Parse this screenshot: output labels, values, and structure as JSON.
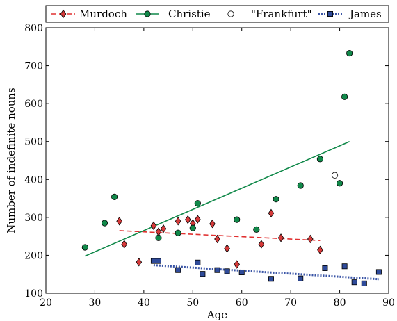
{
  "chart_data": {
    "type": "scatter",
    "xlabel": "Age",
    "ylabel": "Number of indefinite nouns",
    "xlim": [
      20,
      90
    ],
    "ylim": [
      100,
      800
    ],
    "xticks": [
      20,
      30,
      40,
      50,
      60,
      70,
      80,
      90
    ],
    "yticks": [
      100,
      200,
      300,
      400,
      500,
      600,
      700,
      800
    ],
    "grid": false,
    "legend_position": "top",
    "series": [
      {
        "name": "Murdoch",
        "marker": "diamond",
        "color": "#d63a3a",
        "points": [
          [
            35,
            290
          ],
          [
            36,
            229
          ],
          [
            39,
            182
          ],
          [
            42,
            278
          ],
          [
            43,
            262
          ],
          [
            44,
            270
          ],
          [
            47,
            290
          ],
          [
            49,
            294
          ],
          [
            50,
            284
          ],
          [
            51,
            295
          ],
          [
            54,
            283
          ],
          [
            55,
            243
          ],
          [
            57,
            218
          ],
          [
            59,
            176
          ],
          [
            64,
            229
          ],
          [
            66,
            311
          ],
          [
            68,
            246
          ],
          [
            74,
            243
          ],
          [
            76,
            214
          ]
        ],
        "fit": {
          "x": [
            35,
            76
          ],
          "y": [
            265,
            239
          ],
          "style": "dashed"
        }
      },
      {
        "name": "Christie",
        "marker": "circle",
        "color": "#11894a",
        "points": [
          [
            28,
            221
          ],
          [
            32,
            285
          ],
          [
            34,
            354
          ],
          [
            43,
            246
          ],
          [
            47,
            259
          ],
          [
            50,
            272
          ],
          [
            51,
            337
          ],
          [
            59,
            294
          ],
          [
            63,
            268
          ],
          [
            67,
            348
          ],
          [
            72,
            384
          ],
          [
            76,
            454
          ],
          [
            80,
            390
          ],
          [
            81,
            618
          ],
          [
            82,
            733
          ]
        ],
        "fit": {
          "x": [
            28,
            82
          ],
          "y": [
            198,
            500
          ],
          "style": "solid"
        }
      },
      {
        "name": "\"Frankfurt\"",
        "marker": "open-circle",
        "color": "#ffffff",
        "points": [
          [
            79,
            411
          ]
        ]
      },
      {
        "name": "James",
        "marker": "square",
        "color": "#2f4b9a",
        "points": [
          [
            42,
            185
          ],
          [
            43,
            185
          ],
          [
            47,
            161
          ],
          [
            51,
            181
          ],
          [
            52,
            151
          ],
          [
            55,
            161
          ],
          [
            57,
            158
          ],
          [
            60,
            155
          ],
          [
            66,
            138
          ],
          [
            72,
            139
          ],
          [
            77,
            166
          ],
          [
            81,
            171
          ],
          [
            83,
            129
          ],
          [
            85,
            126
          ],
          [
            88,
            156
          ]
        ],
        "fit": {
          "x": [
            42,
            88
          ],
          "y": [
            174,
            137
          ],
          "style": "dotted"
        }
      }
    ]
  }
}
